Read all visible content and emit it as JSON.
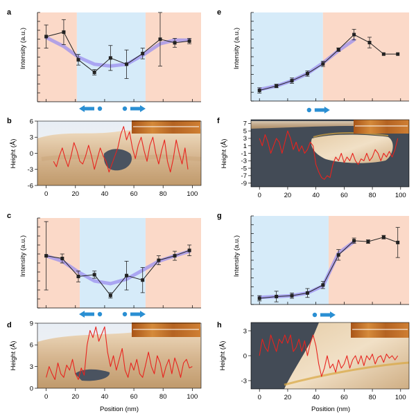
{
  "colors": {
    "pink_region": "#fbd9c8",
    "blue_region": "#d6ebf9",
    "fit_curve": "#9b8fef",
    "height_trace": "#e8231e",
    "arrow": "#2a8fd3",
    "surface_tan": "#d2b48c",
    "surface_dark": "#3f4650",
    "afm_inset": "#b8651f"
  },
  "chart_data": [
    {
      "panel": "a",
      "type": "line",
      "kind": "intensity",
      "xlabel": "",
      "ylabel": "Intensity (a.u.)",
      "xlim": [
        -6,
        106
      ],
      "ylim": [
        0,
        1
      ],
      "regions": [
        {
          "from": -6,
          "to": 21,
          "color": "pink"
        },
        {
          "from": 21,
          "to": 68,
          "color": "blue"
        },
        {
          "from": 68,
          "to": 106,
          "color": "pink"
        }
      ],
      "arrows": [
        "left-dot",
        "dot-right"
      ],
      "x": [
        0,
        12,
        22,
        33,
        44,
        55,
        66,
        78,
        88,
        98
      ],
      "values": [
        0.73,
        0.78,
        0.47,
        0.33,
        0.49,
        0.42,
        0.54,
        0.7,
        0.66,
        0.68
      ],
      "errors": [
        0.13,
        0.14,
        0.06,
        0.03,
        0.14,
        0.16,
        0.06,
        0.3,
        0.05,
        0.03
      ],
      "fit": [
        0.72,
        0.62,
        0.5,
        0.42,
        0.4,
        0.42,
        0.52,
        0.65,
        0.69,
        0.69
      ],
      "xticks": [],
      "show_xtick_labels": false
    },
    {
      "panel": "b",
      "type": "line",
      "kind": "height",
      "xlabel": "",
      "ylabel": "Height (Å)",
      "xlim": [
        -6,
        106
      ],
      "ylim": [
        -6,
        6
      ],
      "yticks": [
        -6,
        -3,
        0,
        3,
        6
      ],
      "xticks": [
        0,
        20,
        40,
        60,
        80,
        100
      ],
      "x": [
        5,
        7,
        9,
        11,
        13,
        15,
        17,
        19,
        21,
        23,
        25,
        27,
        29,
        31,
        33,
        35,
        37,
        39,
        41,
        43,
        45,
        47,
        49,
        51,
        53,
        55,
        57,
        59,
        61,
        63,
        65,
        67,
        69,
        71,
        73,
        75,
        77,
        79,
        81,
        83,
        85,
        87,
        89,
        91,
        93,
        95,
        97
      ],
      "values": [
        -1.5,
        -2.5,
        -0.5,
        1,
        -1,
        -2.5,
        -0.5,
        2,
        0.5,
        -1.5,
        -2,
        -0.5,
        1.5,
        -0.5,
        -3,
        -1,
        1,
        -0.5,
        -1.5,
        -3.5,
        -2,
        -0.5,
        1,
        3.5,
        5,
        2.5,
        4,
        1,
        -1,
        1.5,
        3,
        0.5,
        -1.5,
        1.5,
        3,
        0,
        -2,
        0.5,
        2.5,
        -1.5,
        -3.5,
        -1,
        2.5,
        0,
        -2,
        1,
        -3
      ]
    },
    {
      "panel": "c",
      "type": "line",
      "kind": "intensity",
      "xlabel": "",
      "ylabel": "Intensity (a.u.)",
      "xlim": [
        -6,
        106
      ],
      "ylim": [
        0,
        1
      ],
      "regions": [
        {
          "from": -6,
          "to": 23,
          "color": "pink"
        },
        {
          "from": 23,
          "to": 68,
          "color": "blue"
        },
        {
          "from": 68,
          "to": 106,
          "color": "pink"
        }
      ],
      "arrows": [
        "left-dot",
        "dot-right"
      ],
      "x": [
        0,
        11,
        22,
        33,
        44,
        55,
        66,
        77,
        88,
        98
      ],
      "values": [
        0.58,
        0.55,
        0.35,
        0.37,
        0.14,
        0.36,
        0.31,
        0.53,
        0.58,
        0.64
      ],
      "errors": [
        0.38,
        0.05,
        0.06,
        0.04,
        0.03,
        0.16,
        0.14,
        0.05,
        0.05,
        0.06
      ],
      "fit": [
        0.58,
        0.52,
        0.4,
        0.3,
        0.27,
        0.32,
        0.42,
        0.52,
        0.58,
        0.63
      ],
      "xticks": [],
      "show_xtick_labels": false
    },
    {
      "panel": "d",
      "type": "line",
      "kind": "height",
      "xlabel": "Position (nm)",
      "ylabel": "Height (Å)",
      "xlim": [
        -6,
        106
      ],
      "ylim": [
        0,
        9
      ],
      "yticks": [
        0,
        3,
        6,
        9
      ],
      "xticks": [
        0,
        20,
        40,
        60,
        80,
        100
      ],
      "x": [
        0,
        2,
        4,
        6,
        8,
        10,
        12,
        14,
        16,
        18,
        20,
        22,
        24,
        26,
        28,
        30,
        32,
        34,
        36,
        38,
        40,
        42,
        44,
        46,
        48,
        50,
        52,
        54,
        56,
        58,
        60,
        62,
        64,
        66,
        68,
        70,
        72,
        74,
        76,
        78,
        80,
        82,
        84,
        86,
        88,
        90,
        92,
        94,
        96,
        98,
        100
      ],
      "values": [
        1.5,
        3,
        2,
        1.2,
        3.5,
        2,
        1.5,
        3.2,
        2.5,
        4,
        2,
        1.2,
        2.8,
        1.8,
        6,
        8,
        7,
        8.5,
        6.5,
        7.5,
        8.5,
        5,
        3,
        4.5,
        2.5,
        4,
        5.5,
        2.5,
        1.5,
        3.5,
        2.5,
        4,
        2,
        1.5,
        3.2,
        5,
        3,
        2,
        4.5,
        3.5,
        1.5,
        3,
        4,
        2,
        4.2,
        3,
        1.5,
        3.5,
        4,
        2.8,
        3
      ]
    },
    {
      "panel": "e",
      "type": "line",
      "kind": "intensity",
      "xlabel": "",
      "ylabel": "Intensity (a.u.)",
      "xlim": [
        -6,
        106
      ],
      "ylim": [
        0,
        1
      ],
      "regions": [
        {
          "from": -6,
          "to": 45,
          "color": "blue"
        },
        {
          "from": 45,
          "to": 106,
          "color": "pink"
        }
      ],
      "arrows": [
        "dot-right"
      ],
      "x": [
        0,
        12,
        23,
        34,
        45,
        56,
        67,
        78,
        88,
        98
      ],
      "values": [
        0.12,
        0.17,
        0.23,
        0.31,
        0.42,
        0.58,
        0.75,
        0.66,
        0.53,
        0.53
      ],
      "errors": [
        0.03,
        0.02,
        0.03,
        0.03,
        0.03,
        0.02,
        0.06,
        0.06,
        0.0,
        0.0
      ],
      "fit": [
        0.13,
        0.17,
        0.23,
        0.31,
        0.43,
        0.57,
        0.69
      ],
      "fit_x": [
        0,
        12,
        23,
        34,
        45,
        56,
        67
      ],
      "xticks": [],
      "show_xtick_labels": false
    },
    {
      "panel": "f",
      "type": "line",
      "kind": "height",
      "xlabel": "",
      "ylabel": "Height (Å)",
      "xlim": [
        -6,
        106
      ],
      "ylim": [
        -10,
        8
      ],
      "yticks": [
        -9,
        -7,
        -5,
        -3,
        -1,
        1,
        3,
        5,
        7
      ],
      "tick_labels": [
        "-9",
        "-7",
        "-5",
        "-3",
        "-1",
        "1",
        "3",
        "5",
        "7"
      ],
      "xticks": [
        0,
        20,
        40,
        60,
        80,
        100
      ],
      "x": [
        0,
        2,
        4,
        6,
        8,
        10,
        12,
        14,
        16,
        18,
        20,
        22,
        24,
        26,
        28,
        30,
        32,
        34,
        36,
        38,
        40,
        42,
        44,
        46,
        48,
        50,
        52,
        54,
        56,
        58,
        60,
        62,
        64,
        66,
        68,
        70,
        72,
        74,
        76,
        78,
        80,
        82,
        84,
        86,
        88,
        90,
        92,
        94,
        96,
        98
      ],
      "values": [
        3,
        1,
        4,
        2,
        -1,
        1,
        3,
        2,
        -1,
        2,
        5,
        3,
        0,
        2,
        -0.5,
        1,
        -1,
        0,
        2,
        1,
        -4,
        -6,
        -7.5,
        -8,
        -7,
        -7.5,
        -4,
        -2,
        -3,
        -1,
        -3.5,
        -2,
        -3,
        -1,
        -3,
        -4,
        -2.5,
        -3,
        -1,
        -3,
        -2,
        0,
        -1,
        -3,
        -1,
        -2,
        -0.5,
        -2,
        0,
        3
      ]
    },
    {
      "panel": "g",
      "type": "line",
      "kind": "intensity",
      "xlabel": "",
      "ylabel": "Intensity (a.u.)",
      "xlim": [
        -6,
        106
      ],
      "ylim": [
        0,
        1
      ],
      "regions": [
        {
          "from": -6,
          "to": 49,
          "color": "blue"
        },
        {
          "from": 49,
          "to": 106,
          "color": "pink"
        }
      ],
      "arrows": [
        "dot-right"
      ],
      "x": [
        0,
        12,
        23,
        34,
        45,
        56,
        67,
        77,
        88,
        98
      ],
      "values": [
        0.07,
        0.09,
        0.1,
        0.13,
        0.22,
        0.56,
        0.72,
        0.71,
        0.76,
        0.7
      ],
      "errors": [
        0.03,
        0.06,
        0.03,
        0.05,
        0.04,
        0.06,
        0.03,
        0.02,
        0.02,
        0.17
      ],
      "fit": [
        0.08,
        0.09,
        0.1,
        0.13,
        0.21,
        0.58,
        0.71
      ],
      "fit_x": [
        0,
        12,
        23,
        34,
        45,
        56,
        67
      ],
      "xticks": [],
      "show_xtick_labels": false
    },
    {
      "panel": "h",
      "type": "line",
      "kind": "height",
      "xlabel": "Position (nm)",
      "ylabel": "Height (Å)",
      "xlim": [
        -6,
        106
      ],
      "ylim": [
        -4,
        4
      ],
      "yticks": [
        -3,
        0,
        3
      ],
      "xticks": [
        0,
        20,
        40,
        60,
        80,
        100
      ],
      "x": [
        0,
        2,
        4,
        6,
        8,
        10,
        12,
        14,
        16,
        18,
        20,
        22,
        24,
        26,
        28,
        30,
        32,
        34,
        36,
        38,
        40,
        42,
        44,
        46,
        48,
        50,
        52,
        54,
        56,
        58,
        60,
        62,
        64,
        66,
        68,
        70,
        72,
        74,
        76,
        78,
        80,
        82,
        84,
        86,
        88,
        90,
        92,
        94,
        96,
        98
      ],
      "values": [
        0,
        2,
        1,
        0.5,
        2.5,
        1.5,
        0.5,
        2,
        1.5,
        2.5,
        1.5,
        2.5,
        0.5,
        1,
        2,
        0.5,
        1.8,
        0,
        1.5,
        2.5,
        1.2,
        -1,
        -2.5,
        -1.5,
        0,
        -1.5,
        -1,
        -2,
        -0.5,
        -1.5,
        -1,
        0,
        -1.5,
        -0.5,
        0,
        -1,
        0,
        -1.2,
        0,
        -0.5,
        0.2,
        -1,
        -0.2,
        0,
        -0.8,
        0.2,
        -0.3,
        0,
        -0.5,
        0
      ]
    }
  ]
}
